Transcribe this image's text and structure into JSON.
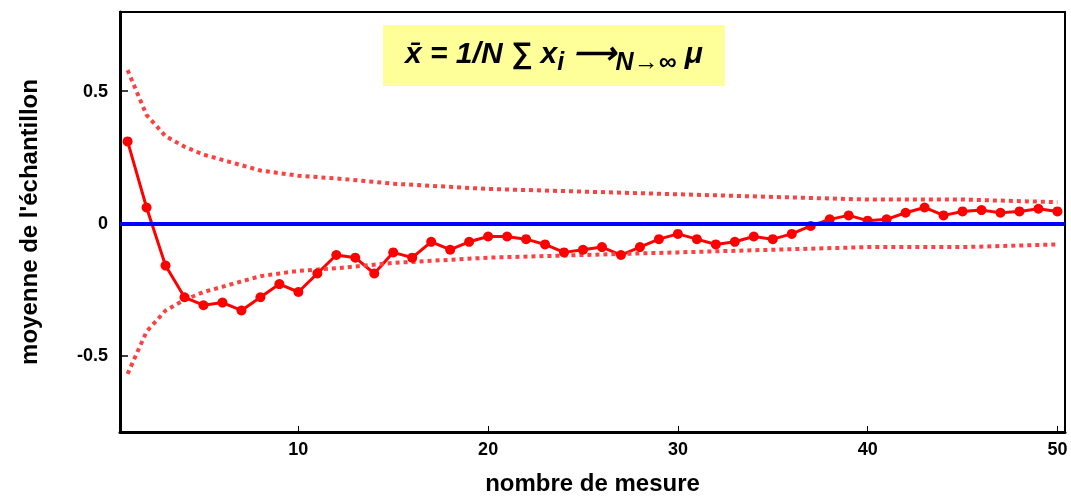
{
  "chart_data": {
    "type": "line",
    "xlabel": "nombre de mesure",
    "ylabel": "moyenne de l'échantillon",
    "xlim": [
      0.6,
      50.4
    ],
    "xticks": [
      10,
      20,
      30,
      40,
      50
    ],
    "ylim": [
      -0.79,
      0.8
    ],
    "yticks": [
      0.5,
      0,
      -0.5
    ],
    "grid": false,
    "marker": "circle",
    "line_style": "solid",
    "series": [
      {
        "color": "#ff0000",
        "x": [
          1,
          2,
          3,
          4,
          5,
          6,
          7,
          8,
          9,
          10,
          11,
          12,
          13,
          14,
          15,
          16,
          17,
          18,
          19,
          20,
          21,
          22,
          23,
          24,
          25,
          26,
          27,
          28,
          29,
          30,
          31,
          32,
          33,
          34,
          35,
          36,
          37,
          38,
          39,
          40,
          41,
          42,
          43,
          44,
          45,
          46,
          47,
          48,
          49,
          50
        ],
        "values": [
          0.31,
          0.06,
          -0.16,
          -0.28,
          -0.31,
          -0.3,
          -0.33,
          -0.28,
          -0.23,
          -0.26,
          -0.19,
          -0.12,
          -0.13,
          -0.19,
          -0.11,
          -0.13,
          -0.07,
          -0.1,
          -0.07,
          -0.05,
          -0.05,
          -0.06,
          -0.08,
          -0.11,
          -0.1,
          -0.09,
          -0.12,
          -0.09,
          -0.06,
          -0.04,
          -0.06,
          -0.08,
          -0.07,
          -0.05,
          -0.06,
          -0.04,
          -0.01,
          0.015,
          0.03,
          0.01,
          0.015,
          0.04,
          0.06,
          0.03,
          0.045,
          0.05,
          0.04,
          0.045,
          0.055,
          0.045
        ]
      },
      {
        "color": "#ff4040",
        "marker": "none",
        "line_style": "dotted",
        "x": [
          1,
          2,
          3,
          4,
          5,
          6,
          7,
          8,
          9,
          10,
          12,
          15,
          20,
          25,
          30,
          35,
          40,
          45,
          50
        ],
        "values": [
          0.58,
          0.41,
          0.33,
          0.29,
          0.26,
          0.24,
          0.22,
          0.2,
          0.19,
          0.18,
          0.17,
          0.15,
          0.13,
          0.12,
          0.11,
          0.1,
          0.09,
          0.09,
          0.08
        ]
      },
      {
        "color": "#ff4040",
        "marker": "none",
        "line_style": "dotted",
        "x": [
          1,
          2,
          3,
          4,
          5,
          6,
          7,
          8,
          9,
          10,
          12,
          15,
          20,
          25,
          30,
          35,
          40,
          45,
          50
        ],
        "values": [
          -0.57,
          -0.41,
          -0.33,
          -0.29,
          -0.26,
          -0.24,
          -0.22,
          -0.2,
          -0.19,
          -0.18,
          -0.17,
          -0.15,
          -0.13,
          -0.12,
          -0.11,
          -0.1,
          -0.09,
          -0.09,
          -0.08
        ]
      }
    ],
    "ref_lines": [
      {
        "axis": "y",
        "value": 0,
        "color": "#0000ff"
      }
    ],
    "annotations": [
      "x̄ = 1/N ∑ x$_{i}$ ⟶$_{N→∞}$ μ"
    ]
  }
}
